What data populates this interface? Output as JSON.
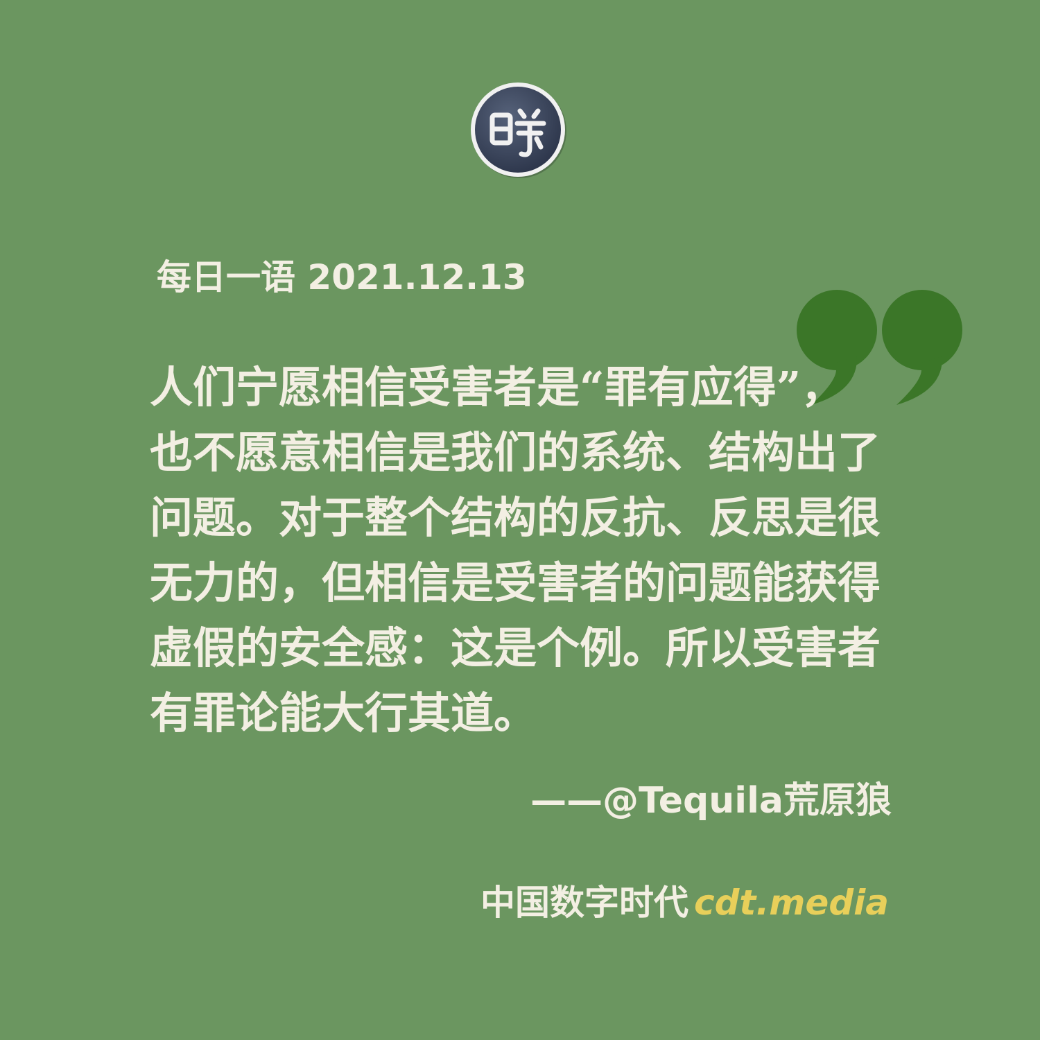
{
  "logo": {
    "icon": "cdt-seal-icon"
  },
  "header": {
    "title": "每日一语 2021.12.13"
  },
  "quote": {
    "lines": [
      "人们宁愿相信受害者是“罪有应得”，",
      "也不愿意相信是我们的系统、结构出了",
      "问题。对于整个结构的反抗、反思是很",
      "无力的，但相信是受害者的问题能获得",
      "虚假的安全感：这是个例。所以受害者",
      "有罪论能大行其道。"
    ],
    "mark_color": "#3b7628"
  },
  "attribution": "——@Tequila荒原狼",
  "footer": {
    "brand": "中国数字时代",
    "url": "cdt.media",
    "url_color": "#e8cf5a"
  },
  "colors": {
    "background": "#6b9660",
    "text": "#f3efe3"
  }
}
